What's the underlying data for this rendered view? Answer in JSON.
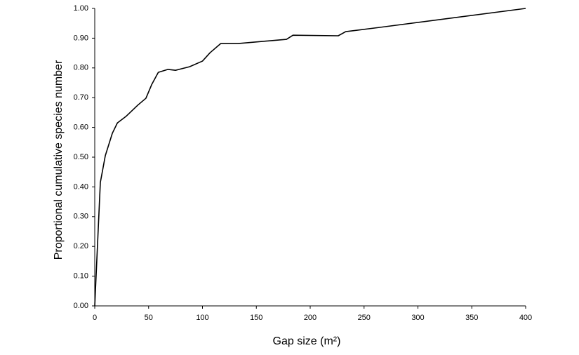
{
  "chart_data": {
    "type": "line",
    "xlabel": "Gap size (m²)",
    "ylabel": "Proportional cumulative species number",
    "x": [
      0,
      5.2,
      9.8,
      16.3,
      21,
      29,
      40,
      47.5,
      53,
      59,
      68,
      75,
      88,
      100,
      107,
      117,
      133,
      178,
      184,
      226,
      233,
      264,
      400
    ],
    "values": [
      0,
      0.415,
      0.505,
      0.58,
      0.615,
      0.637,
      0.675,
      0.698,
      0.745,
      0.785,
      0.795,
      0.792,
      0.804,
      0.823,
      0.851,
      0.882,
      0.882,
      0.896,
      0.91,
      0.908,
      0.922,
      0.936,
      1.0
    ],
    "color": "#000000",
    "xlim": [
      0,
      400
    ],
    "xticks": [
      0,
      50,
      100,
      150,
      200,
      250,
      300,
      350,
      400
    ],
    "ylim": [
      0,
      1
    ],
    "yticks": [
      {
        "value": 0,
        "label": "0.00"
      },
      {
        "value": 0.1,
        "label": "0.10"
      },
      {
        "value": 0.2,
        "label": "0.20"
      },
      {
        "value": 0.3,
        "label": "0.30"
      },
      {
        "value": 0.4,
        "label": "0.40"
      },
      {
        "value": 0.5,
        "label": "0.50"
      },
      {
        "value": 0.6,
        "label": "0.60"
      },
      {
        "value": 0.7,
        "label": "0.70"
      },
      {
        "value": 0.8,
        "label": "0.80"
      },
      {
        "value": 0.9,
        "label": "0.90"
      },
      {
        "value": 1,
        "label": "1.00"
      }
    ],
    "grid": false
  }
}
